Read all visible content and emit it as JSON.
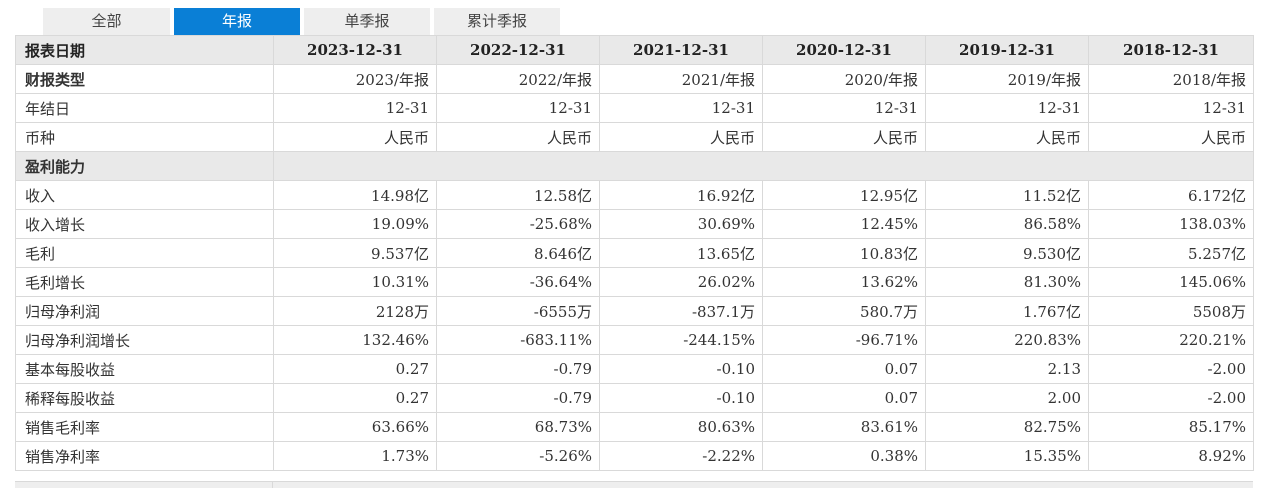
{
  "tabs": [
    "全部",
    "年报",
    "单季报",
    "累计季报"
  ],
  "active_tab": 1,
  "header": {
    "label": "报表日期",
    "columns": [
      "2023-12-31",
      "2022-12-31",
      "2021-12-31",
      "2020-12-31",
      "2019-12-31",
      "2018-12-31"
    ]
  },
  "meta_rows": [
    {
      "label": "财报类型",
      "values": [
        "2023/年报",
        "2022/年报",
        "2021/年报",
        "2020/年报",
        "2019/年报",
        "2018/年报"
      ]
    },
    {
      "label": "年结日",
      "values": [
        "12-31",
        "12-31",
        "12-31",
        "12-31",
        "12-31",
        "12-31"
      ]
    },
    {
      "label": "币种",
      "values": [
        "人民币",
        "人民币",
        "人民币",
        "人民币",
        "人民币",
        "人民币"
      ]
    }
  ],
  "section": {
    "label": "盈利能力"
  },
  "rows": [
    {
      "label": "收入",
      "values": [
        "14.98亿",
        "12.58亿",
        "16.92亿",
        "12.95亿",
        "11.52亿",
        "6.172亿"
      ]
    },
    {
      "label": "收入增长",
      "values": [
        "19.09%",
        "-25.68%",
        "30.69%",
        "12.45%",
        "86.58%",
        "138.03%"
      ]
    },
    {
      "label": "毛利",
      "values": [
        "9.537亿",
        "8.646亿",
        "13.65亿",
        "10.83亿",
        "9.530亿",
        "5.257亿"
      ]
    },
    {
      "label": "毛利增长",
      "values": [
        "10.31%",
        "-36.64%",
        "26.02%",
        "13.62%",
        "81.30%",
        "145.06%"
      ]
    },
    {
      "label": "归母净利润",
      "values": [
        "2128万",
        "-6555万",
        "-837.1万",
        "580.7万",
        "1.767亿",
        "5508万"
      ]
    },
    {
      "label": "归母净利润增长",
      "values": [
        "132.46%",
        "-683.11%",
        "-244.15%",
        "-96.71%",
        "220.83%",
        "220.21%"
      ]
    },
    {
      "label": "基本每股收益",
      "values": [
        "0.27",
        "-0.79",
        "-0.10",
        "0.07",
        "2.13",
        "-2.00"
      ]
    },
    {
      "label": "稀释每股收益",
      "values": [
        "0.27",
        "-0.79",
        "-0.10",
        "0.07",
        "2.00",
        "-2.00"
      ]
    },
    {
      "label": "销售毛利率",
      "values": [
        "63.66%",
        "68.73%",
        "80.63%",
        "83.61%",
        "82.75%",
        "85.17%"
      ]
    },
    {
      "label": "销售净利率",
      "values": [
        "1.73%",
        "-5.26%",
        "-2.22%",
        "0.38%",
        "15.35%",
        "8.92%"
      ]
    }
  ]
}
